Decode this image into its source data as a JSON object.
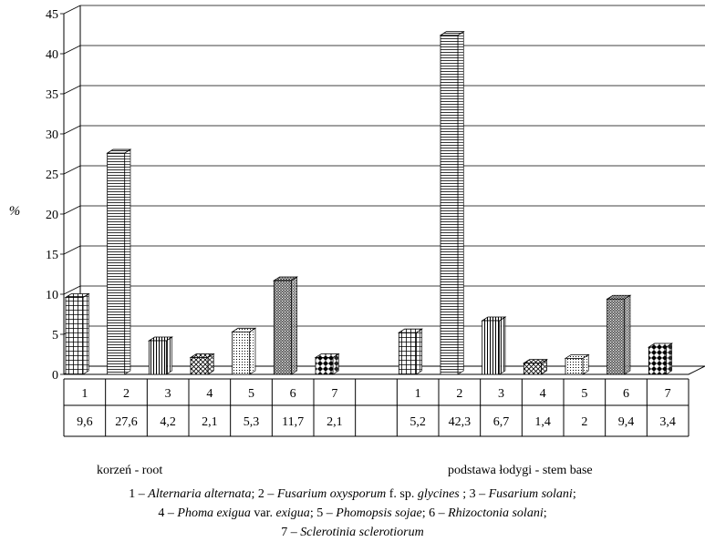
{
  "chart_data": {
    "type": "bar",
    "ylabel": "%",
    "ylim": [
      0,
      45
    ],
    "yticks": [
      "0",
      "5",
      "10",
      "15",
      "20",
      "25",
      "30",
      "35",
      "40",
      "45"
    ],
    "grid": true,
    "categories": [
      "1",
      "2",
      "3",
      "4",
      "5",
      "6",
      "7"
    ],
    "groups": [
      {
        "name": "korzeń - root",
        "values": [
          9.6,
          27.6,
          4.2,
          2.1,
          5.3,
          11.7,
          2.1
        ],
        "labels": [
          "9,6",
          "27,6",
          "4,2",
          "2,1",
          "5,3",
          "11,7",
          "2,1"
        ]
      },
      {
        "name": "podstawa łodygi - stem base",
        "values": [
          5.2,
          42.3,
          6.7,
          1.4,
          2,
          9.4,
          3.4
        ],
        "labels": [
          "5,2",
          "42,3",
          "6,7",
          "1,4",
          "2",
          "9,4",
          "3,4"
        ]
      }
    ],
    "patterns": [
      "grid",
      "hlines",
      "vlines",
      "crosshatch",
      "dots",
      "dense-dots",
      "checker"
    ]
  },
  "legend": {
    "line1": {
      "n1": "1 – ",
      "s1": "Alternaria alternata",
      "n2": "; 2 – ",
      "s2a": "Fusarium oxysporum",
      "n2b": " f. sp. ",
      "s2b": "glycines",
      "n3": " ; 3 – ",
      "s3": "Fusarium solani",
      "end": ";"
    },
    "line2": {
      "n4": "4 – ",
      "s4": "Phoma exigua",
      "n4b": " var. ",
      "s4b": "exigua",
      "n5": "; 5 – ",
      "s5": "Phomopsis sojae",
      "n6": "; 6 – ",
      "s6": "Rhizoctonia solani",
      "end": ";"
    },
    "line3": {
      "n7": "7 – ",
      "s7": "Sclerotinia sclerotiorum"
    }
  }
}
